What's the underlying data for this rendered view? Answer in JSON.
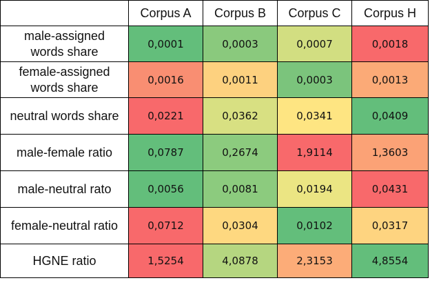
{
  "table": {
    "columns": [
      "Corpus A",
      "Corpus B",
      "Corpus C",
      "Corpus H"
    ],
    "rows": [
      {
        "label": "male-assigned\nwords share",
        "cells": [
          {
            "value": "0,0001",
            "color": "#63be7b"
          },
          {
            "value": "0,0003",
            "color": "#8ac97d"
          },
          {
            "value": "0,0007",
            "color": "#d2de81"
          },
          {
            "value": "0,0018",
            "color": "#f8696b"
          }
        ]
      },
      {
        "label": "female-assigned\nwords share",
        "cells": [
          {
            "value": "0,0016",
            "color": "#f98e72"
          },
          {
            "value": "0,0011",
            "color": "#fdd17f"
          },
          {
            "value": "0,0003",
            "color": "#7bc47c"
          },
          {
            "value": "0,0013",
            "color": "#fbaa77"
          }
        ]
      },
      {
        "label": "neutral words share",
        "cells": [
          {
            "value": "0,0221",
            "color": "#f8696b"
          },
          {
            "value": "0,0362",
            "color": "#d8e082"
          },
          {
            "value": "0,0341",
            "color": "#fee582"
          },
          {
            "value": "0,0409",
            "color": "#63be7b"
          }
        ]
      },
      {
        "label": "male-female ratio",
        "cells": [
          {
            "value": "0,0787",
            "color": "#63be7b"
          },
          {
            "value": "0,2674",
            "color": "#8ccb7e"
          },
          {
            "value": "1,9114",
            "color": "#f8696b"
          },
          {
            "value": "1,3603",
            "color": "#fba276"
          }
        ]
      },
      {
        "label": "male-neutral rato",
        "cells": [
          {
            "value": "0,0056",
            "color": "#63be7b"
          },
          {
            "value": "0,0081",
            "color": "#8ccb7e"
          },
          {
            "value": "0,0194",
            "color": "#ebe583"
          },
          {
            "value": "0,0431",
            "color": "#f8696b"
          }
        ]
      },
      {
        "label": "female-neutral ratio",
        "cells": [
          {
            "value": "0,0712",
            "color": "#f8696b"
          },
          {
            "value": "0,0304",
            "color": "#fed880"
          },
          {
            "value": "0,0102",
            "color": "#63be7b"
          },
          {
            "value": "0,0317",
            "color": "#fed480"
          }
        ]
      },
      {
        "label": "HGNE ratio",
        "cells": [
          {
            "value": "1,5254",
            "color": "#f8696b"
          },
          {
            "value": "4,0878",
            "color": "#b5d680"
          },
          {
            "value": "2,3153",
            "color": "#fcac78"
          },
          {
            "value": "4,8554",
            "color": "#63be7b"
          }
        ]
      }
    ]
  }
}
